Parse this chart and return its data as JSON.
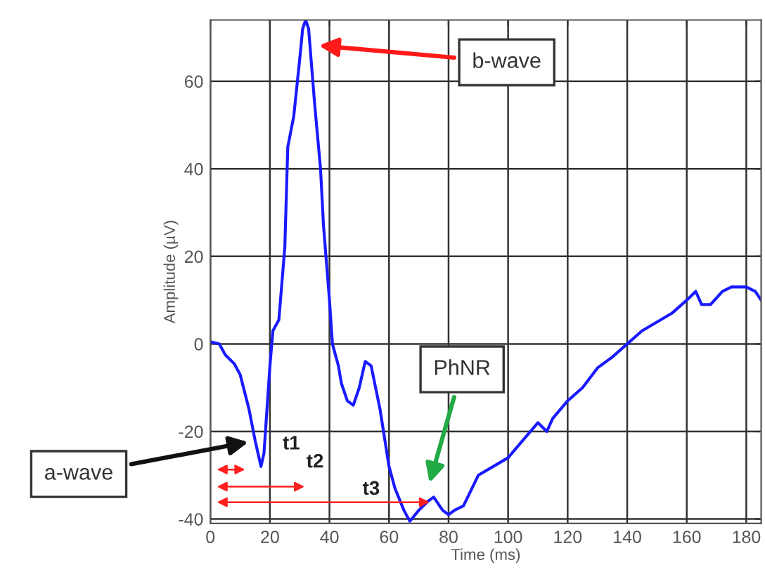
{
  "chart_data": {
    "type": "line",
    "xlabel": "Time (ms)",
    "ylabel": "Amplitude (µV)",
    "xlim": [
      0,
      185
    ],
    "ylim": [
      -41,
      74
    ],
    "xticks": [
      0,
      20,
      40,
      60,
      80,
      100,
      120,
      140,
      160,
      180
    ],
    "yticks": [
      -40,
      -20,
      0,
      20,
      40,
      60
    ],
    "grid": true,
    "marker": "none",
    "line_style": "solid",
    "series": [
      {
        "color": "#1a1aff",
        "x": [
          0,
          3,
          5,
          8,
          10,
          13,
          15,
          17,
          18,
          20,
          21,
          23,
          25,
          26,
          28,
          30,
          31,
          32,
          33,
          35,
          37,
          38,
          40,
          41,
          43,
          44,
          46,
          48,
          50,
          52,
          54,
          57,
          60,
          62,
          65,
          67,
          70,
          73,
          75,
          78,
          80,
          82,
          85,
          90,
          95,
          100,
          105,
          110,
          113,
          115,
          120,
          125,
          130,
          135,
          140,
          145,
          150,
          155,
          160,
          163,
          165,
          168,
          172,
          175,
          180,
          183,
          185
        ],
        "values": [
          0.5,
          0,
          -2.5,
          -4.5,
          -7,
          -15,
          -22,
          -28,
          -25,
          -5,
          3,
          5.5,
          22,
          45,
          52,
          65,
          72,
          74,
          72,
          55,
          40,
          27,
          10,
          0,
          -5,
          -9,
          -13,
          -14,
          -10,
          -4,
          -5,
          -15,
          -28,
          -33,
          -38,
          -40.5,
          -38,
          -36,
          -35,
          -38,
          -39,
          -38,
          -37,
          -30,
          -28,
          -26,
          -22,
          -18,
          -20,
          -17,
          -13,
          -10,
          -5.5,
          -3,
          0,
          3,
          5,
          7,
          10,
          12,
          9,
          9,
          12,
          13,
          13,
          12,
          10
        ]
      }
    ],
    "annotations": [
      "b-wave",
      "a-wave",
      "PhNR",
      "t1",
      "t2",
      "t3"
    ]
  }
}
